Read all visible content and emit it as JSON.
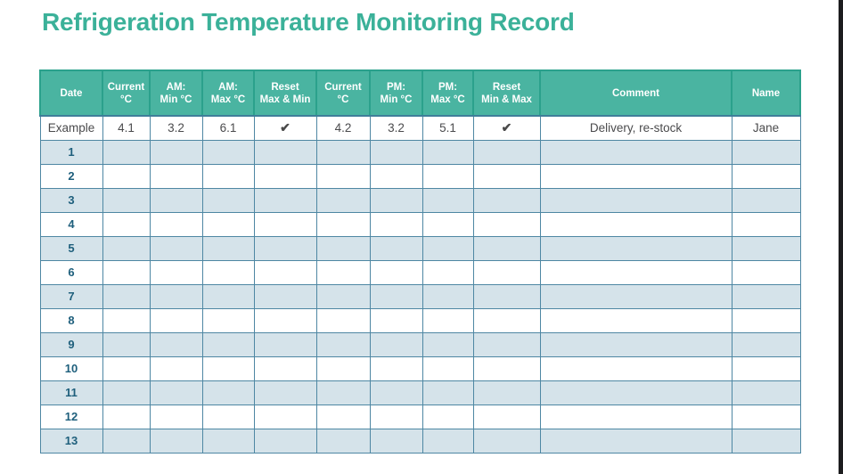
{
  "page": {
    "title": "Refrigeration Temperature Monitoring Record"
  },
  "colors": {
    "title": "#3bb199",
    "header_bg": "#4ab4a1",
    "header_border": "#2ba18c",
    "grid_border": "#4e87a3",
    "row_alt_bg": "#d5e3ea",
    "row_number": "#1e5f7c",
    "example_text": "#4b4b4d",
    "checkmark": "#4a4a4a",
    "edge_bar": "#1d1d1f"
  },
  "table": {
    "columns": [
      {
        "id": "date",
        "lines": [
          "Date"
        ]
      },
      {
        "id": "current-am",
        "lines": [
          "Current",
          "°C"
        ]
      },
      {
        "id": "am-min",
        "lines": [
          "AM:",
          "Min °C"
        ]
      },
      {
        "id": "am-max",
        "lines": [
          "AM:",
          "Max °C"
        ]
      },
      {
        "id": "reset-am",
        "lines": [
          "Reset",
          "Max & Min"
        ]
      },
      {
        "id": "current-pm",
        "lines": [
          "Current",
          "°C"
        ]
      },
      {
        "id": "pm-min",
        "lines": [
          "PM:",
          "Min °C"
        ]
      },
      {
        "id": "pm-max",
        "lines": [
          "PM:",
          "Max °C"
        ]
      },
      {
        "id": "reset-pm",
        "lines": [
          "Reset",
          "Min & Max"
        ]
      },
      {
        "id": "comment",
        "lines": [
          "Comment"
        ]
      },
      {
        "id": "name",
        "lines": [
          "Name"
        ]
      }
    ],
    "example_row": {
      "date": "Example",
      "values": [
        "4.1",
        "3.2",
        "6.1",
        "✔",
        "4.2",
        "3.2",
        "5.1",
        "✔",
        "Delivery, re-stock",
        "Jane"
      ]
    },
    "rows": [
      "1",
      "2",
      "3",
      "4",
      "5",
      "6",
      "7",
      "8",
      "9",
      "10",
      "11",
      "12",
      "13"
    ]
  }
}
